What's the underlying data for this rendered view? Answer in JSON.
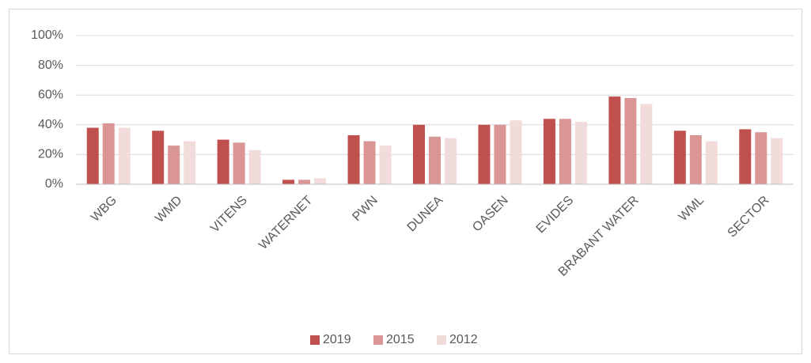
{
  "chart_data": {
    "type": "bar",
    "categories": [
      "WBG",
      "WMD",
      "VITENS",
      "WATERNET",
      "PWN",
      "DUNEA",
      "OASEN",
      "EVIDES",
      "BRABANT WATER",
      "WML",
      "SECTOR"
    ],
    "series": [
      {
        "name": "2019",
        "color": "#c0504d",
        "values": [
          38,
          36,
          30,
          3,
          33,
          40,
          40,
          44,
          59,
          36,
          37
        ]
      },
      {
        "name": "2015",
        "color": "#d99694",
        "values": [
          41,
          26,
          28,
          3,
          29,
          32,
          40,
          44,
          58,
          33,
          35
        ]
      },
      {
        "name": "2012",
        "color": "#f2dcdb",
        "values": [
          38,
          29,
          23,
          4,
          26,
          31,
          43,
          42,
          54,
          29,
          31
        ]
      }
    ],
    "ylim": [
      0,
      100
    ],
    "yticks": [
      {
        "value": 0,
        "label": "0%"
      },
      {
        "value": 20,
        "label": "20%"
      },
      {
        "value": 40,
        "label": "40%"
      },
      {
        "value": 60,
        "label": "60%"
      },
      {
        "value": 80,
        "label": "80%"
      },
      {
        "value": 100,
        "label": "100%"
      }
    ],
    "grid": true,
    "legend": "bottom"
  }
}
